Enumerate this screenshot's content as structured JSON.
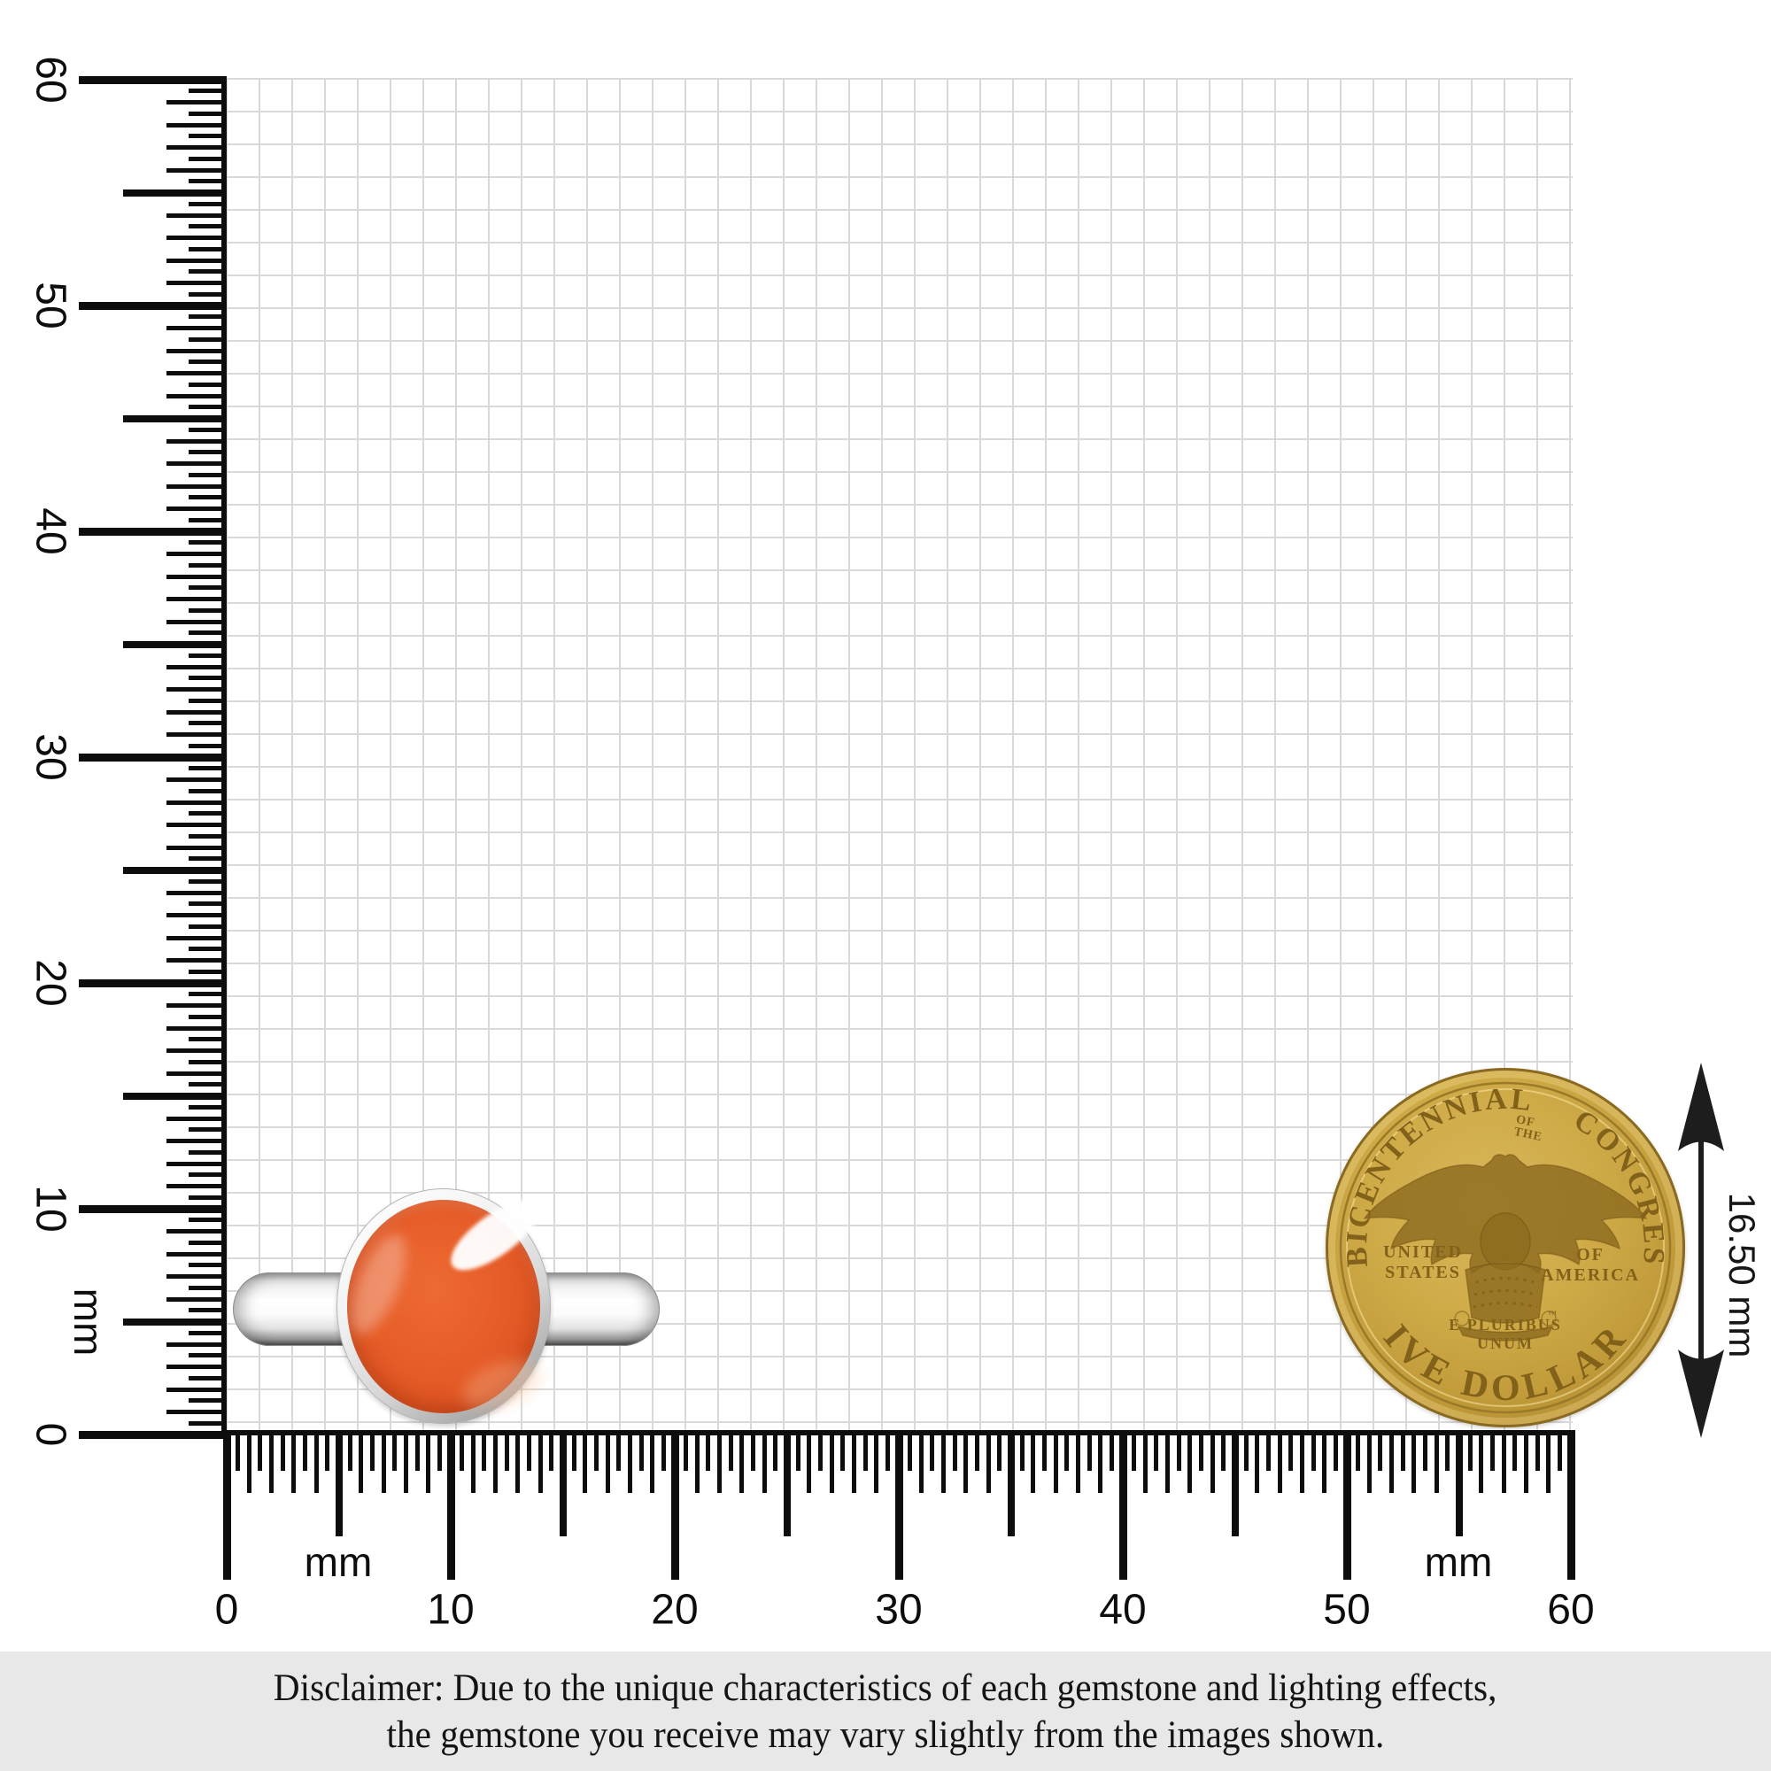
{
  "scene": {
    "background_color": "#ffffff",
    "grid_color": "#d9d9d9",
    "tick_color": "#0d0d0d"
  },
  "rulers": {
    "unit_label": "mm",
    "vertical_labels": [
      "60",
      "50",
      "40",
      "30",
      "20",
      "10",
      "0"
    ],
    "horizontal_labels": [
      "0",
      "10",
      "20",
      "30",
      "40",
      "50",
      "60"
    ]
  },
  "ring": {
    "description": "silver ring band with round orange gemstone in bezel setting",
    "band_color": "#f2f2f2",
    "gem_color": "#e65d28"
  },
  "coin": {
    "description": "gold Five Dollars Bicentennial of the Congress coin",
    "gold_color": "#c7a23d",
    "top_left_arc": "BICENTENNIAL",
    "top_small_line1": "OF",
    "top_small_line2": "THE",
    "top_right_arc": "CONGRESS",
    "left_line1": "UNITED",
    "left_line2": "STATES",
    "right_line1": "OF",
    "right_line2": "AMERICA",
    "motto_line1": "E PLURIBUS",
    "motto_line2": "UNUM",
    "trademark": "™",
    "bottom_arc": "FIVE DOLLARS"
  },
  "measurement": {
    "coin_diameter_label": "16.50 mm"
  },
  "disclaimer": {
    "line1": "Disclaimer: Due to the unique characteristics of each gemstone and lighting effects,",
    "line2": "the gemstone you receive may vary slightly from the images shown."
  }
}
